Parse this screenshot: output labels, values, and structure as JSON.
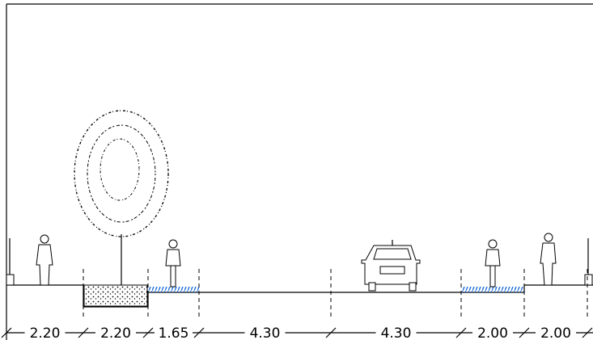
{
  "dimensions": [
    "2.20",
    "2.20",
    "1.65",
    "4.30",
    "4.30",
    "2.00",
    "2.00"
  ]
}
